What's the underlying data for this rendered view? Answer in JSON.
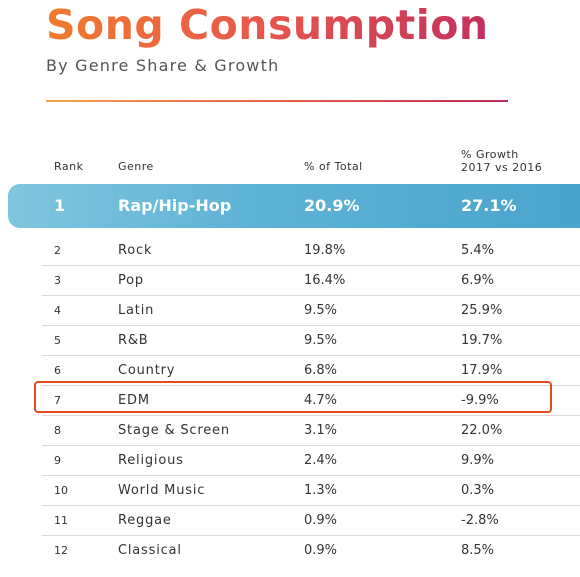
{
  "header": {
    "title": "Song Consumption",
    "subtitle": "By Genre Share & Growth"
  },
  "colors": {
    "title_gradient": [
      "#f07b2d",
      "#c4305e"
    ],
    "highlight_band": "#5fb3d6",
    "callout_border": "#e24a24"
  },
  "chart_data": {
    "type": "table",
    "columns": [
      "Rank",
      "Genre",
      "% of Total",
      "% Growth",
      "2017 vs 2016"
    ],
    "rows": [
      {
        "rank": "1",
        "genre": "Rap/Hip-Hop",
        "total": "20.9%",
        "growth": "27.1%"
      },
      {
        "rank": "2",
        "genre": "Rock",
        "total": "19.8%",
        "growth": "5.4%"
      },
      {
        "rank": "3",
        "genre": "Pop",
        "total": "16.4%",
        "growth": "6.9%"
      },
      {
        "rank": "4",
        "genre": "Latin",
        "total": "9.5%",
        "growth": "25.9%"
      },
      {
        "rank": "5",
        "genre": "R&B",
        "total": "9.5%",
        "growth": "19.7%"
      },
      {
        "rank": "6",
        "genre": "Country",
        "total": "6.8%",
        "growth": "17.9%"
      },
      {
        "rank": "7",
        "genre": "EDM",
        "total": "4.7%",
        "growth": "-9.9%"
      },
      {
        "rank": "8",
        "genre": "Stage & Screen",
        "total": "3.1%",
        "growth": "22.0%"
      },
      {
        "rank": "9",
        "genre": "Religious",
        "total": "2.4%",
        "growth": "9.9%"
      },
      {
        "rank": "10",
        "genre": "World Music",
        "total": "1.3%",
        "growth": "0.3%"
      },
      {
        "rank": "11",
        "genre": "Reggae",
        "total": "0.9%",
        "growth": "-2.8%"
      },
      {
        "rank": "12",
        "genre": "Classical",
        "total": "0.9%",
        "growth": "8.5%"
      }
    ],
    "highlighted_rank": "1",
    "callout_rank": "7"
  }
}
